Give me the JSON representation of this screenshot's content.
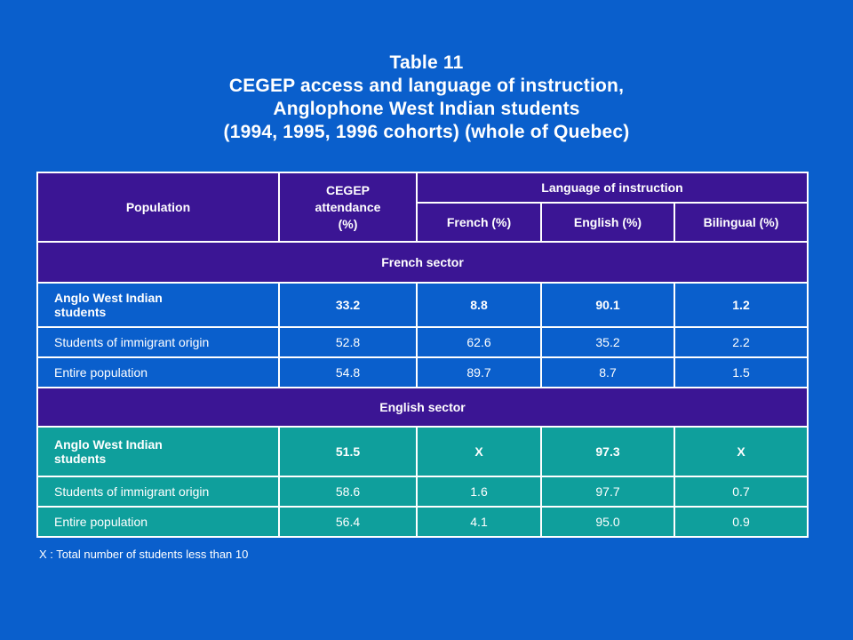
{
  "title": {
    "line1": "Table 11",
    "line2": "CEGEP access and language of instruction,",
    "line3": "Anglophone West Indian students",
    "line4": "(1994, 1995, 1996 cohorts) (whole of Quebec)"
  },
  "header": {
    "population": "Population",
    "cegep_line1": "CEGEP",
    "cegep_line2": "attendance",
    "cegep_line3": "(%)",
    "language": "Language of instruction",
    "french": "French (%)",
    "english": "English  (%)",
    "bilingual": "Bilingual  (%)"
  },
  "french_sector": {
    "label": "French sector",
    "rows": [
      {
        "pop_line1": "Anglo West Indian",
        "pop_line2": "students",
        "cegep": "33.2",
        "french": "8.8",
        "english": "90.1",
        "bilingual": "1.2"
      },
      {
        "pop": "Students of immigrant origin",
        "cegep": "52.8",
        "french": "62.6",
        "english": "35.2",
        "bilingual": "2.2"
      },
      {
        "pop": "Entire population",
        "cegep": "54.8",
        "french": "89.7",
        "english": "8.7",
        "bilingual": "1.5"
      }
    ]
  },
  "english_sector": {
    "label": "English sector",
    "rows": [
      {
        "pop_line1": "Anglo West Indian",
        "pop_line2": "students",
        "cegep": "51.5",
        "french": "X",
        "english": "97.3",
        "bilingual": "X"
      },
      {
        "pop": "Students of immigrant origin",
        "cegep": "58.6",
        "french": "1.6",
        "english": "97.7",
        "bilingual": "0.7"
      },
      {
        "pop": "Entire population",
        "cegep": "56.4",
        "french": "4.1",
        "english": "95.0",
        "bilingual": "0.9"
      }
    ]
  },
  "footnote": "X :  Total number of students less than 10",
  "colors": {
    "background": "#0a5fcc",
    "header": "#3b1594",
    "english_rows": "#0f9f9c"
  }
}
